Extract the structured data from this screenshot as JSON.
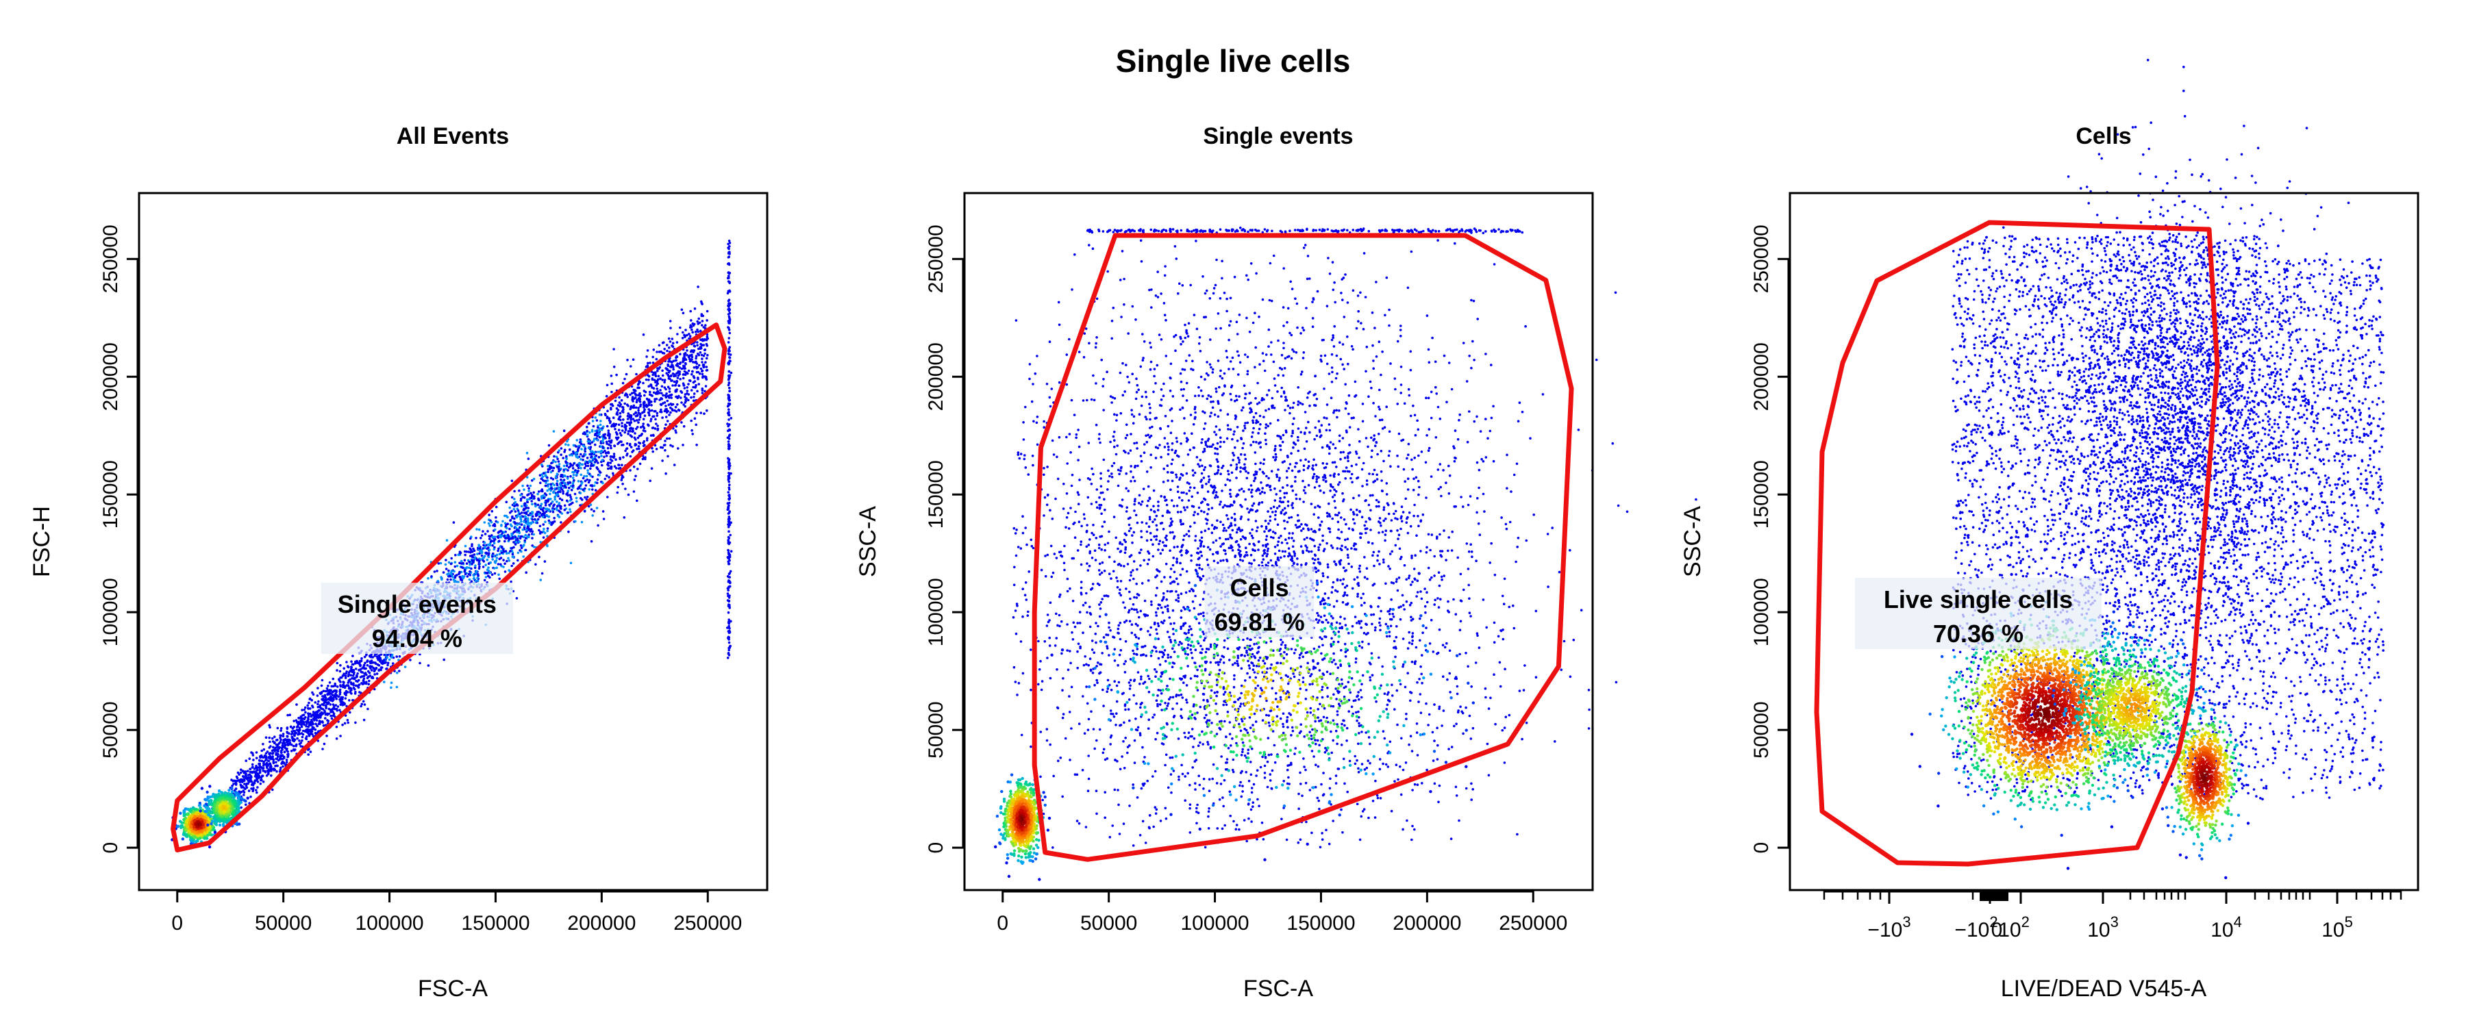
{
  "figure": {
    "title": "Single live cells"
  },
  "colors": {
    "gate": "#ee1111",
    "frame": "#000000",
    "point_low": "#0000ee",
    "label_box": "#e8eef7"
  },
  "chart_data": [
    {
      "type": "scatter",
      "title": "All Events",
      "xlabel": "FSC-A",
      "ylabel": "FSC-H",
      "x_ticks": [
        0,
        50000,
        100000,
        150000,
        200000,
        250000
      ],
      "x_tick_labels": [
        "0",
        "50000",
        "100000",
        "150000",
        "200000",
        "250000"
      ],
      "y_ticks": [
        0,
        50000,
        100000,
        150000,
        200000,
        250000
      ],
      "y_tick_labels": [
        "0",
        "50000",
        "100000",
        "150000",
        "200000",
        "250000"
      ],
      "xlim": [
        -18000,
        278000
      ],
      "ylim": [
        -18000,
        278000
      ],
      "gate": {
        "name": "Single events",
        "percent": "94.04 %",
        "label_at": [
          113000,
          98000
        ],
        "polygon": [
          [
            0,
            20000
          ],
          [
            20000,
            38000
          ],
          [
            60000,
            68000
          ],
          [
            100000,
            102000
          ],
          [
            150000,
            147000
          ],
          [
            200000,
            188000
          ],
          [
            230000,
            208000
          ],
          [
            254000,
            222000
          ],
          [
            258000,
            212000
          ],
          [
            256000,
            198000
          ],
          [
            200000,
            152000
          ],
          [
            150000,
            110000
          ],
          [
            100000,
            75000
          ],
          [
            60000,
            42000
          ],
          [
            40000,
            22000
          ],
          [
            15000,
            2000
          ],
          [
            0,
            -1000
          ],
          [
            -2000,
            8000
          ]
        ]
      },
      "populations": [
        {
          "kind": "diagonal",
          "x_from": 25000,
          "x_to": 250000,
          "slope": 0.86,
          "spread": 6500,
          "density": "medium"
        },
        {
          "kind": "cluster",
          "x": 10000,
          "y": 10000,
          "sx": 3500,
          "sy": 3000,
          "density": "very-high"
        },
        {
          "kind": "cluster",
          "x": 22000,
          "y": 17000,
          "sx": 4000,
          "sy": 3500,
          "density": "high"
        },
        {
          "kind": "vertical-line",
          "x": 260000,
          "y_from": 80000,
          "y_to": 258000,
          "density": "low"
        }
      ]
    },
    {
      "type": "scatter",
      "title": "Single events",
      "xlabel": "FSC-A",
      "ylabel": "SSC-A",
      "x_ticks": [
        0,
        50000,
        100000,
        150000,
        200000,
        250000
      ],
      "x_tick_labels": [
        "0",
        "50000",
        "100000",
        "150000",
        "200000",
        "250000"
      ],
      "y_ticks": [
        0,
        50000,
        100000,
        150000,
        200000,
        250000
      ],
      "y_tick_labels": [
        "0",
        "50000",
        "100000",
        "150000",
        "200000",
        "250000"
      ],
      "xlim": [
        -18000,
        278000
      ],
      "ylim": [
        -18000,
        278000
      ],
      "gate": {
        "name": "Cells",
        "percent": "69.81 %",
        "label_at": [
          121000,
          105000
        ],
        "polygon": [
          [
            53000,
            260000
          ],
          [
            218000,
            260000
          ],
          [
            256000,
            241000
          ],
          [
            268000,
            195000
          ],
          [
            262000,
            77000
          ],
          [
            238000,
            44000
          ],
          [
            120000,
            5000
          ],
          [
            40000,
            -5000
          ],
          [
            20000,
            -2000
          ],
          [
            15000,
            35000
          ],
          [
            15000,
            100000
          ],
          [
            18000,
            170000
          ]
        ]
      },
      "populations": [
        {
          "kind": "cloud",
          "x": 115000,
          "y": 120000,
          "sx": 55000,
          "sy": 60000,
          "density": "medium"
        },
        {
          "kind": "cluster",
          "x": 125000,
          "y": 65000,
          "sx": 35000,
          "sy": 20000,
          "density": "high"
        },
        {
          "kind": "cluster",
          "x": 9000,
          "y": 12000,
          "sx": 4000,
          "sy": 7000,
          "density": "very-high"
        },
        {
          "kind": "horizontal-line",
          "y": 262000,
          "x_from": 40000,
          "x_to": 245000,
          "density": "low"
        }
      ]
    },
    {
      "type": "scatter",
      "title": "Cells",
      "xlabel": "LIVE/DEAD V545-A",
      "ylabel": "SSC-A",
      "x_scale": "biexponential",
      "x_ticks_display": [
        "-10^3",
        "-10^2",
        "0",
        "10^2",
        "10^3",
        "10^4",
        "10^5"
      ],
      "y_ticks": [
        0,
        50000,
        100000,
        150000,
        200000,
        250000
      ],
      "y_tick_labels": [
        "0",
        "50000",
        "100000",
        "150000",
        "200000",
        "250000"
      ],
      "ylim": [
        -18000,
        278000
      ],
      "gate": {
        "name": "Live single cells",
        "percent": "70.36 %",
        "label_at": [
          "0-10^2 region",
          100000
        ],
        "polygon_note": "closed polygon spanning -10^3 to ~10^3 on x, 0 to 265000 on y"
      },
      "populations": [
        {
          "kind": "cluster",
          "x": "~10^2.5",
          "y": 57000,
          "density": "very-high"
        },
        {
          "kind": "cluster",
          "x": "~10^3.8",
          "y": 30000,
          "density": "very-high"
        },
        {
          "kind": "cloud",
          "x": "~10^2.5",
          "y": 140000,
          "density": "medium"
        }
      ]
    }
  ]
}
